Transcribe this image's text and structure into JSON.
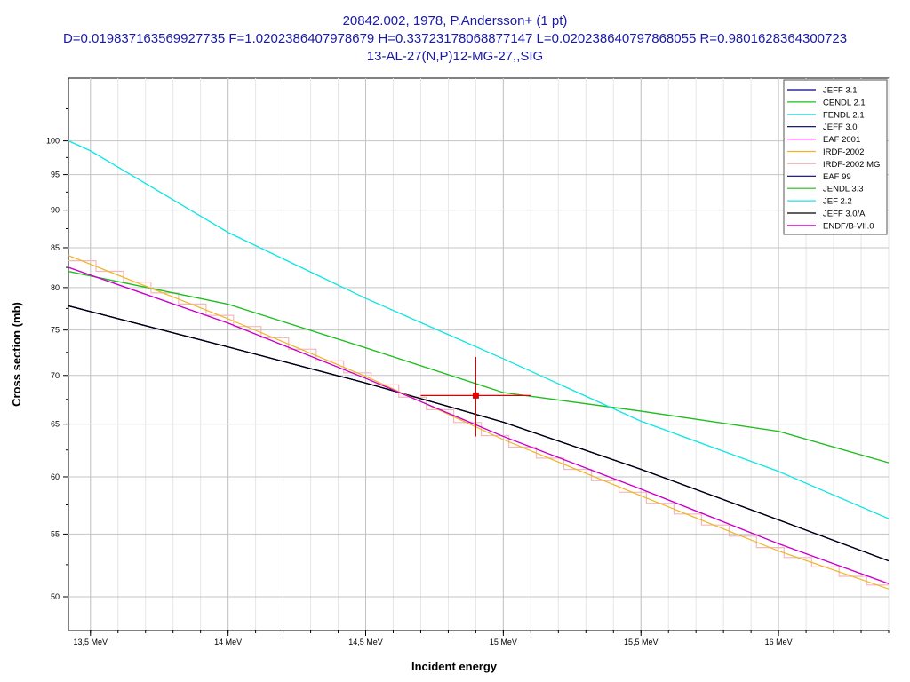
{
  "chart_data": {
    "type": "line",
    "title_lines": [
      "20842.002, 1978, P.Andersson+ (1 pt)",
      "D=0.019837163569927735 F=1.0202386407978679 H=0.33723178068877147 L=0.020238640797868055 R=0.9801628364300723",
      "13-AL-27(N,P)12-MG-27,,SIG"
    ],
    "xlabel": "Incident energy",
    "ylabel": "Cross section (mb)",
    "x_unit": "MeV",
    "xlim": [
      13.42,
      16.4
    ],
    "ylim": [
      47.5,
      110
    ],
    "y_scale": "log",
    "grid": true,
    "legend_position": "top-right",
    "x_ticks": [
      {
        "value": 13.5,
        "label": "13,5 MeV"
      },
      {
        "value": 14.0,
        "label": "14 MeV"
      },
      {
        "value": 14.5,
        "label": "14,5 MeV"
      },
      {
        "value": 15.0,
        "label": "15 MeV"
      },
      {
        "value": 15.5,
        "label": "15,5 MeV"
      },
      {
        "value": 16.0,
        "label": "16 MeV"
      }
    ],
    "y_ticks": [
      {
        "value": 50,
        "label": "50"
      },
      {
        "value": 55,
        "label": "55"
      },
      {
        "value": 60,
        "label": "60"
      },
      {
        "value": 65,
        "label": "65"
      },
      {
        "value": 70,
        "label": "70"
      },
      {
        "value": 75,
        "label": "75"
      },
      {
        "value": 80,
        "label": "80"
      },
      {
        "value": 85,
        "label": "85"
      },
      {
        "value": 90,
        "label": "90"
      },
      {
        "value": 95,
        "label": "95"
      },
      {
        "value": 100,
        "label": "100"
      }
    ],
    "series": [
      {
        "name": "JEFF 3.1",
        "color": "#00008b",
        "x": [
          13.42,
          14.0,
          14.5,
          15.0,
          15.5,
          16.0,
          16.4
        ],
        "y": [
          77.8,
          73.1,
          69.2,
          65.2,
          60.7,
          56.2,
          52.8
        ]
      },
      {
        "name": "CENDL 2.1",
        "color": "#1ebe1e",
        "x": [
          13.42,
          14.0,
          14.5,
          15.0,
          15.5,
          16.0,
          16.4
        ],
        "y": [
          82.0,
          78.0,
          73.0,
          68.2,
          66.3,
          64.3,
          61.3
        ]
      },
      {
        "name": "FENDL 2.1",
        "color": "#14e6e6",
        "x": [
          13.42,
          13.5,
          14.0,
          14.5,
          15.0,
          15.5,
          16.0,
          16.4
        ],
        "y": [
          100.0,
          98.5,
          87.0,
          78.7,
          71.8,
          65.3,
          60.5,
          56.3
        ]
      },
      {
        "name": "JEFF 3.0",
        "color": "#000050",
        "x": [
          13.42,
          14.0,
          14.5,
          15.0,
          15.5,
          16.0,
          16.4
        ],
        "y": [
          77.8,
          73.1,
          69.2,
          65.2,
          60.7,
          56.2,
          52.8
        ]
      },
      {
        "name": "EAF 2001",
        "color": "#cc00cc",
        "x": [
          13.42,
          14.0,
          14.5,
          15.0,
          15.5,
          16.0,
          16.4
        ],
        "y": [
          82.5,
          75.8,
          69.7,
          63.8,
          58.9,
          54.2,
          51.0
        ]
      },
      {
        "name": "IRDF-2002",
        "color": "#f0b428",
        "x": [
          13.42,
          14.0,
          14.5,
          15.0,
          15.5,
          16.0,
          16.4
        ],
        "y": [
          84.0,
          76.3,
          69.9,
          63.5,
          58.3,
          53.6,
          50.6
        ]
      },
      {
        "name": "IRDF-2002 MG",
        "color": "#f4b8b8",
        "x": [
          13.42,
          14.0,
          14.5,
          15.0,
          15.5,
          16.0,
          16.4
        ],
        "y": [
          84.0,
          76.3,
          69.9,
          63.5,
          58.3,
          53.6,
          50.6
        ],
        "step": true
      },
      {
        "name": "EAF 99",
        "color": "#00008b",
        "x": [
          13.42,
          14.0,
          14.5,
          15.0,
          15.5,
          16.0,
          16.4
        ],
        "y": [
          77.8,
          73.1,
          69.2,
          65.2,
          60.7,
          56.2,
          52.8
        ]
      },
      {
        "name": "JENDL 3.3",
        "color": "#1ebe1e",
        "x": [
          13.42,
          14.0,
          14.5,
          15.0,
          15.5,
          16.0,
          16.4
        ],
        "y": [
          82.0,
          78.0,
          73.0,
          68.2,
          66.3,
          64.3,
          61.3
        ]
      },
      {
        "name": "JEF 2.2",
        "color": "#14e6e6",
        "x": [
          13.42,
          13.5,
          14.0,
          14.5,
          15.0,
          15.5,
          16.0,
          16.4
        ],
        "y": [
          100.0,
          98.5,
          87.0,
          78.7,
          71.8,
          65.3,
          60.5,
          56.3
        ]
      },
      {
        "name": "JEFF 3.0/A",
        "color": "#000000",
        "x": [
          13.42,
          14.0,
          14.5,
          15.0,
          15.5,
          16.0,
          16.4
        ],
        "y": [
          77.8,
          73.1,
          69.2,
          65.2,
          60.7,
          56.2,
          52.8
        ]
      },
      {
        "name": "ENDF/B-VII.0",
        "color": "#cc00cc",
        "x": [
          13.42,
          14.0,
          14.5,
          15.0,
          15.5,
          16.0,
          16.4
        ],
        "y": [
          82.5,
          75.8,
          69.7,
          63.8,
          58.9,
          54.2,
          51.0
        ]
      }
    ],
    "experimental_point": {
      "color": "#e00000",
      "x": 14.9,
      "y": 67.9,
      "x_err": [
        14.7,
        15.1
      ],
      "y_err": [
        63.8,
        72.0
      ]
    }
  }
}
